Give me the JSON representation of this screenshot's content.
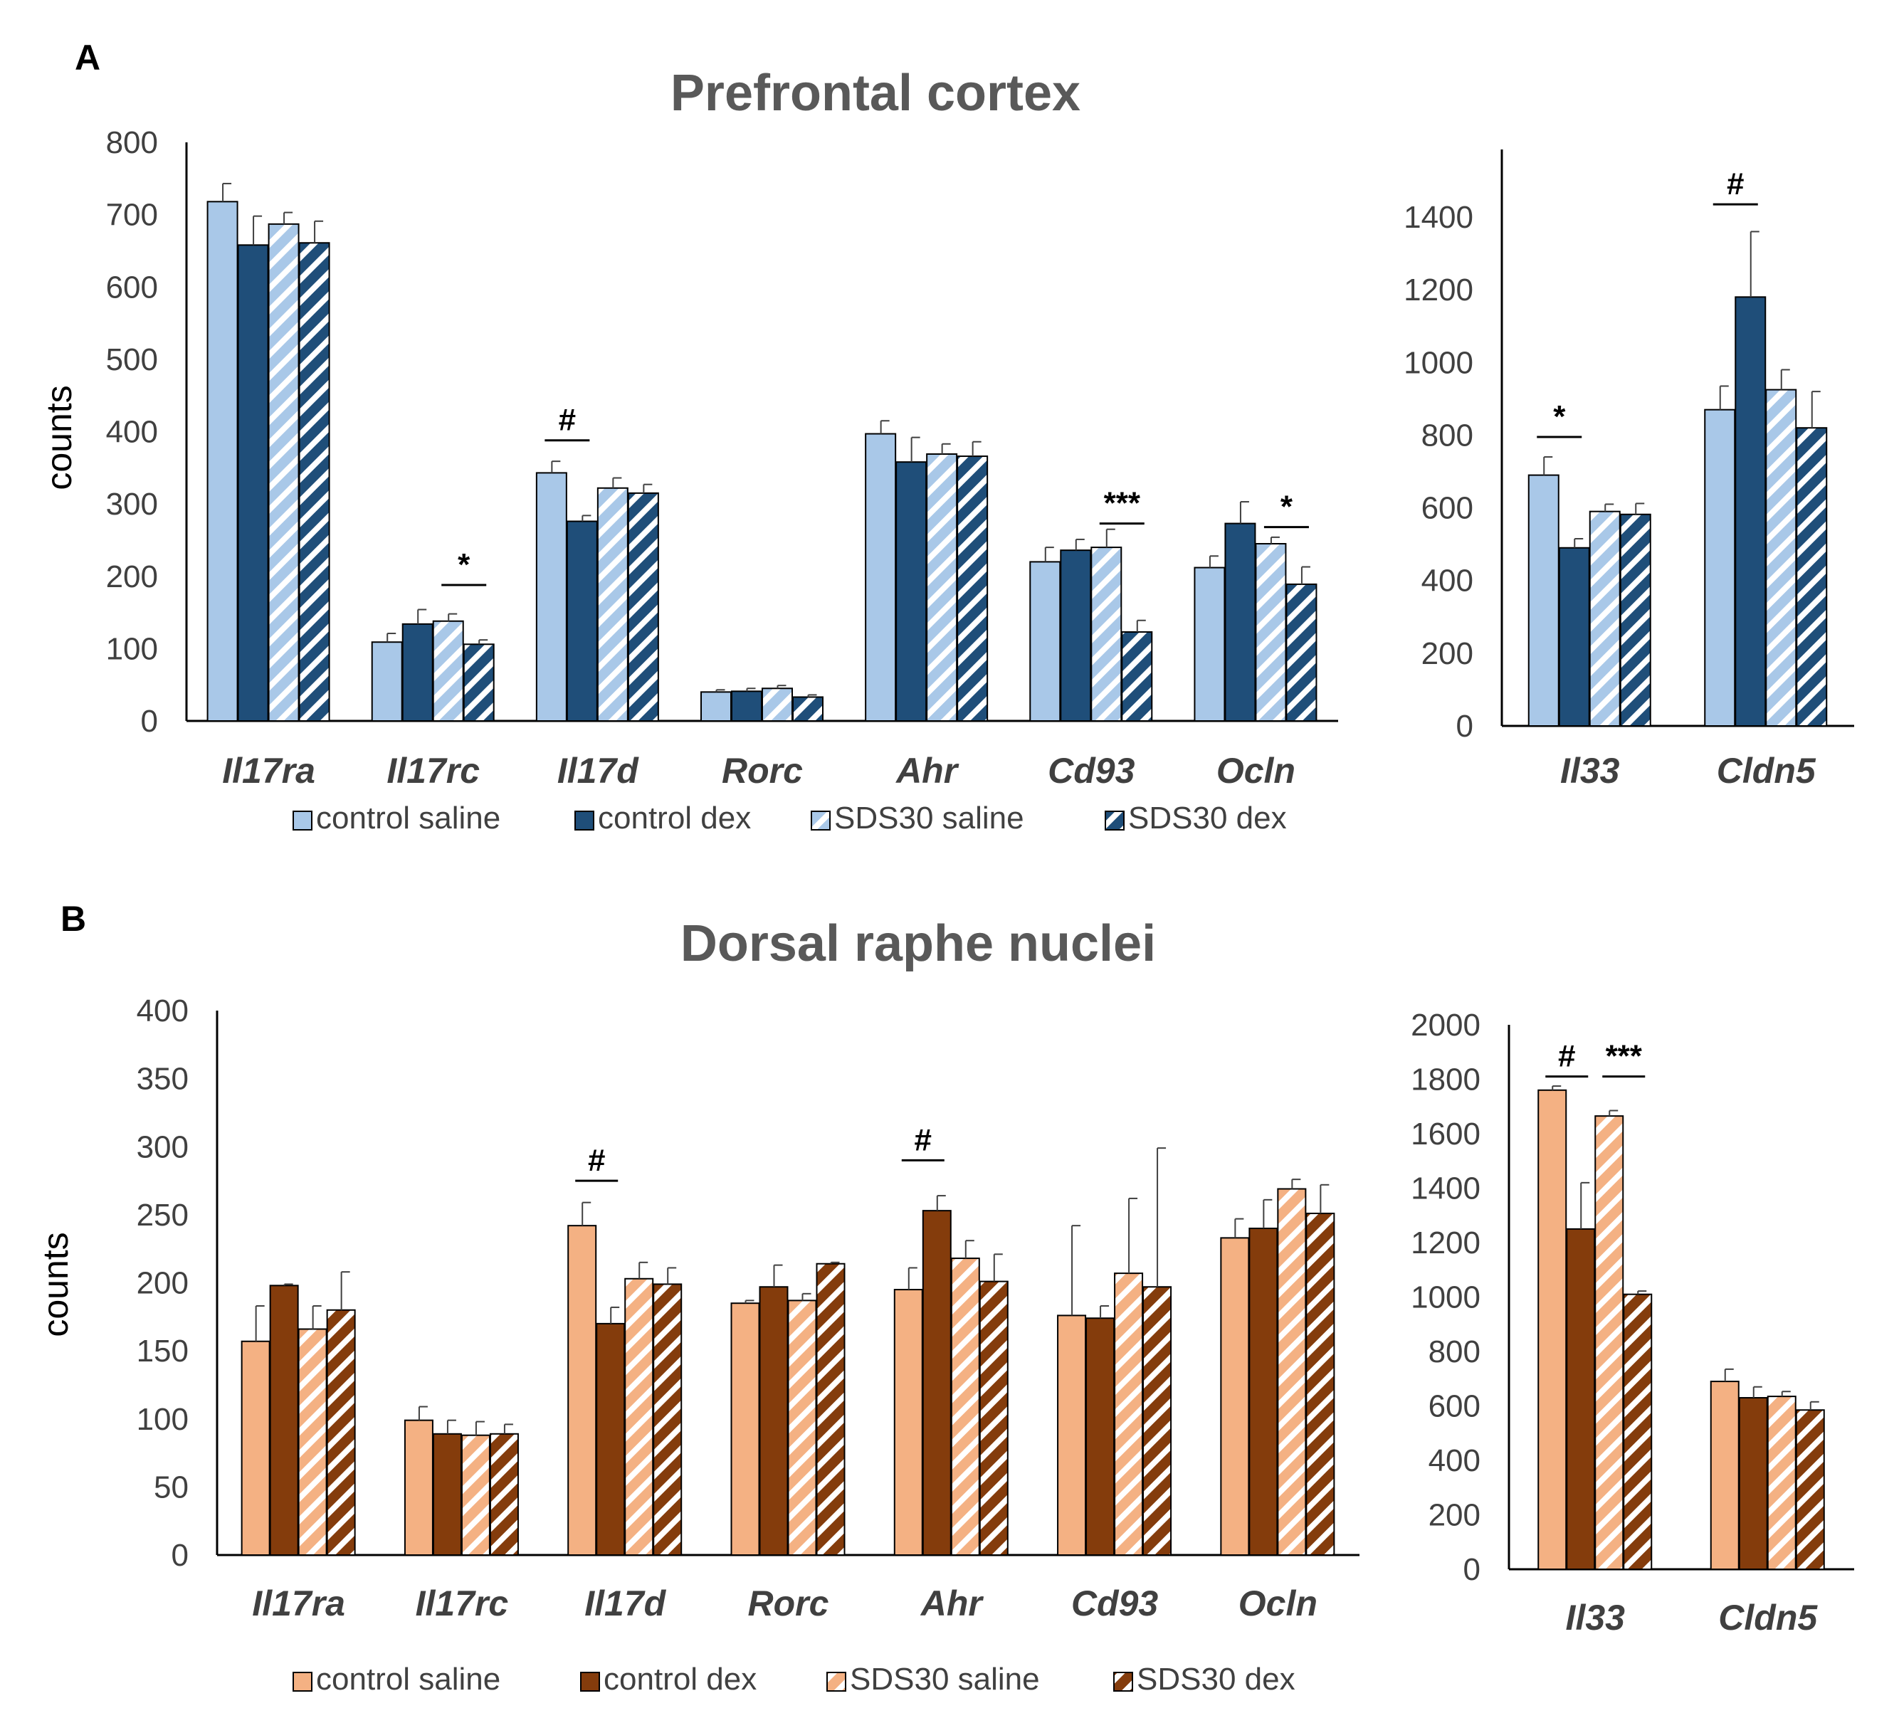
{
  "colors": {
    "blue_light": "#a9c8e8",
    "blue_dark": "#1f4e79",
    "orange_light": "#f4b183",
    "orange_dark": "#843c0c",
    "axis": "#000000",
    "tick_text": "#404040",
    "title_text": "#595959"
  },
  "legend_labels": [
    "control saline",
    "control dex",
    "SDS30 saline",
    "SDS30 dex"
  ],
  "chart_data": [
    {
      "id": "A-left",
      "type": "bar",
      "panel_label": "A",
      "title": "Prefrontal cortex",
      "xlabel": "",
      "ylabel": "counts",
      "ylim": [
        0,
        800
      ],
      "yticks": [
        0,
        100,
        200,
        300,
        400,
        500,
        600,
        700,
        800
      ],
      "palette": "blue",
      "categories": [
        "Il17ra",
        "Il17rc",
        "Il17d",
        "Rorc",
        "Ahr",
        "Cd93",
        "Ocln"
      ],
      "series": [
        {
          "name": "control saline",
          "values": [
            718,
            109,
            343,
            40,
            397,
            220,
            212
          ],
          "errors": [
            25,
            12,
            16,
            3,
            18,
            20,
            16
          ]
        },
        {
          "name": "control dex",
          "values": [
            658,
            134,
            276,
            41,
            358,
            236,
            273
          ],
          "errors": [
            40,
            20,
            8,
            4,
            34,
            15,
            30
          ]
        },
        {
          "name": "SDS30 saline",
          "values": [
            687,
            138,
            322,
            45,
            369,
            240,
            245
          ],
          "errors": [
            16,
            10,
            14,
            4,
            14,
            25,
            9
          ]
        },
        {
          "name": "SDS30 dex",
          "values": [
            661,
            106,
            315,
            33,
            366,
            123,
            189
          ],
          "errors": [
            30,
            6,
            12,
            3,
            20,
            16,
            24
          ]
        }
      ],
      "annotations": [
        {
          "text": "*",
          "category": "Il17rc",
          "from": 2,
          "to": 3,
          "y": 188
        },
        {
          "text": "#",
          "category": "Il17d",
          "from": 0,
          "to": 1,
          "y": 388
        },
        {
          "text": "***",
          "category": "Cd93",
          "from": 2,
          "to": 3,
          "y": 273
        },
        {
          "text": "*",
          "category": "Ocln",
          "from": 2,
          "to": 3,
          "y": 268
        }
      ]
    },
    {
      "id": "A-right",
      "type": "bar",
      "panel_label": "",
      "title": "",
      "xlabel": "",
      "ylabel": "",
      "ylim": [
        0,
        1500
      ],
      "yticks": [
        0,
        200,
        400,
        600,
        800,
        1000,
        1200,
        1400
      ],
      "palette": "blue",
      "categories": [
        "Il33",
        "Cldn5"
      ],
      "series": [
        {
          "name": "control saline",
          "values": [
            690,
            870
          ],
          "errors": [
            50,
            65
          ]
        },
        {
          "name": "control dex",
          "values": [
            490,
            1180
          ],
          "errors": [
            25,
            180
          ]
        },
        {
          "name": "SDS30 saline",
          "values": [
            590,
            925
          ],
          "errors": [
            20,
            55
          ]
        },
        {
          "name": "SDS30 dex",
          "values": [
            582,
            820
          ],
          "errors": [
            30,
            100
          ]
        }
      ],
      "annotations": [
        {
          "text": "*",
          "category": "Il33",
          "from": 0,
          "to": 1,
          "y": 795
        },
        {
          "text": "#",
          "category": "Cldn5",
          "from": 0,
          "to": 1,
          "y": 1435
        }
      ]
    },
    {
      "id": "B-left",
      "type": "bar",
      "panel_label": "B",
      "title": "Dorsal raphe nuclei",
      "xlabel": "",
      "ylabel": "counts",
      "ylim": [
        0,
        400
      ],
      "yticks": [
        0,
        50,
        100,
        150,
        200,
        250,
        300,
        350,
        400
      ],
      "palette": "orange",
      "categories": [
        "Il17ra",
        "Il17rc",
        "Il17d",
        "Rorc",
        "Ahr",
        "Cd93",
        "Ocln"
      ],
      "series": [
        {
          "name": "control saline",
          "values": [
            157,
            99,
            242,
            185,
            195,
            176,
            233
          ],
          "errors": [
            26,
            10,
            17,
            2,
            16,
            66,
            14
          ]
        },
        {
          "name": "control dex",
          "values": [
            198,
            89,
            170,
            197,
            253,
            174,
            240
          ],
          "errors": [
            1,
            10,
            12,
            16,
            11,
            9,
            21
          ]
        },
        {
          "name": "SDS30 saline",
          "values": [
            166,
            88,
            203,
            187,
            218,
            207,
            269
          ],
          "errors": [
            17,
            10,
            12,
            5,
            13,
            55,
            7
          ]
        },
        {
          "name": "SDS30 dex",
          "values": [
            180,
            89,
            199,
            214,
            201,
            197,
            251
          ],
          "errors": [
            28,
            7,
            12,
            1,
            20,
            102,
            21
          ]
        }
      ],
      "annotations": [
        {
          "text": "#",
          "category": "Il17d",
          "from": 0,
          "to": 1,
          "y": 275
        },
        {
          "text": "#",
          "category": "Ahr",
          "from": 0,
          "to": 1,
          "y": 290
        }
      ]
    },
    {
      "id": "B-right",
      "type": "bar",
      "panel_label": "",
      "title": "",
      "xlabel": "",
      "ylabel": "",
      "ylim": [
        0,
        2000
      ],
      "yticks": [
        0,
        200,
        400,
        600,
        800,
        1000,
        1200,
        1400,
        1600,
        1800,
        2000
      ],
      "palette": "orange",
      "categories": [
        "Il33",
        "Cldn5"
      ],
      "series": [
        {
          "name": "control saline",
          "values": [
            1760,
            690
          ],
          "errors": [
            15,
            45
          ]
        },
        {
          "name": "control dex",
          "values": [
            1250,
            630
          ],
          "errors": [
            170,
            40
          ]
        },
        {
          "name": "SDS30 saline",
          "values": [
            1665,
            635
          ],
          "errors": [
            20,
            18
          ]
        },
        {
          "name": "SDS30 dex",
          "values": [
            1010,
            585
          ],
          "errors": [
            12,
            30
          ]
        }
      ],
      "annotations": [
        {
          "text": "#",
          "category": "Il33",
          "from": 0,
          "to": 1,
          "y": 1810
        },
        {
          "text": "***",
          "category": "Il33",
          "from": 2,
          "to": 3,
          "y": 1810
        }
      ]
    }
  ]
}
